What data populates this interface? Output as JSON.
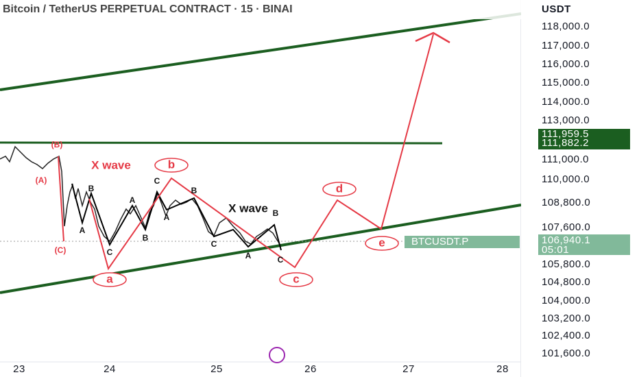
{
  "header": {
    "title": "Bitcoin / TetherUS PERPETUAL CONTRACT · 15 · BINAI"
  },
  "price_axis": {
    "currency": "USDT",
    "labels": [
      "118,000.0",
      "117,000.0",
      "116,000.0",
      "115,000.0",
      "114,000.0",
      "113,000.0",
      "111,000.0",
      "110,000.0",
      "108,800.0",
      "107,600.0",
      "105,800.0",
      "104,800.0",
      "104,000.0",
      "103,200.0",
      "102,400.0",
      "101,600.0"
    ]
  },
  "date_axis": {
    "labels": [
      "23",
      "24",
      "25",
      "26",
      "27",
      "28"
    ]
  },
  "price_tags": {
    "line_high": "111,959.5",
    "line_low": "111,882.2",
    "symbol": "BTCUSDT.P",
    "last_price": "106,940.1",
    "countdown": "05:01"
  },
  "annotations": [
    "(B)",
    "(A)",
    "(C)",
    "X wave",
    "b",
    "a",
    "c",
    "d",
    "e",
    "B",
    "A",
    "C",
    "A",
    "B",
    "C",
    "A",
    "B",
    "C",
    "X wave",
    "B",
    "A",
    "C"
  ]
}
